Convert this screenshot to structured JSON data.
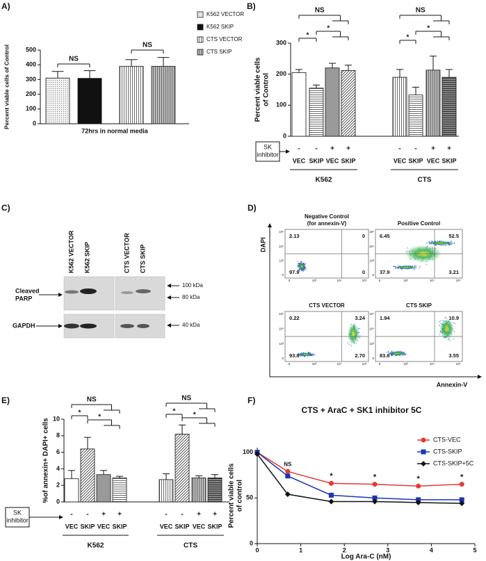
{
  "chart_data": [
    {
      "panel": "A)",
      "type": "bar",
      "categories": [
        "K562 VECTOR",
        "K562 SKIP",
        "CTS VECTOR",
        "CTS SKIP"
      ],
      "values": [
        310,
        308,
        390,
        390
      ],
      "errors": [
        45,
        52,
        45,
        60
      ],
      "patterns": [
        "dots",
        "solid",
        "vstripes",
        "grayv"
      ],
      "ylabel": "Percent viable cells of Control",
      "xlabel": "72hrs in normal media",
      "ylim": [
        0,
        500
      ],
      "yticks": [
        0,
        100,
        200,
        300,
        400,
        500
      ],
      "annotations": [
        "NS",
        "NS"
      ]
    },
    {
      "panel": "B)",
      "type": "bar",
      "categories": [
        "VEC",
        "SKIP",
        "VEC",
        "SKIP",
        "VEC",
        "SKIP",
        "VEC",
        "SKIP"
      ],
      "inhibitor": [
        "-",
        "-",
        "+",
        "+",
        "-",
        "-",
        "+",
        "+"
      ],
      "inhibitor_label": [
        "SK",
        "inhibitor"
      ],
      "groups": [
        "K562",
        "CTS"
      ],
      "values": [
        205,
        155,
        220,
        212,
        190,
        133,
        213,
        190
      ],
      "errors": [
        10,
        10,
        15,
        17,
        25,
        25,
        45,
        25
      ],
      "patterns": [
        "white",
        "hstripes",
        "gray",
        "diag",
        "vstripes",
        "hstripes",
        "grayv",
        "darkh"
      ],
      "ylabel": [
        "Percent viable cells",
        "of Control"
      ],
      "ylim": [
        0,
        300
      ],
      "yticks": [
        0,
        100,
        200,
        300
      ],
      "annotations": [
        "*",
        "*",
        "NS",
        "*",
        "*",
        "NS"
      ]
    },
    {
      "panel": "E)",
      "type": "bar",
      "categories": [
        "VEC",
        "SKIP",
        "VEC",
        "SKIP",
        "VEC",
        "SKIP",
        "VEC",
        "SKIP"
      ],
      "inhibitor": [
        "-",
        "-",
        "+",
        "+",
        "-",
        "-",
        "+",
        "+"
      ],
      "inhibitor_label": [
        "SK",
        "inhibitor"
      ],
      "groups": [
        "K562",
        "CTS"
      ],
      "values": [
        2.8,
        6.4,
        3.3,
        2.9,
        2.7,
        8.2,
        2.9,
        2.9
      ],
      "errors": [
        1.0,
        1.4,
        0.5,
        0.2,
        0.7,
        1.1,
        0.25,
        0.4
      ],
      "patterns": [
        "white",
        "diag",
        "gray",
        "hstripes",
        "vstripes",
        "diag",
        "grayv",
        "darkh"
      ],
      "ylabel": [
        "%of annexin+ DAPI+ cells"
      ],
      "ylim": [
        0,
        10
      ],
      "yticks": [
        0,
        2,
        4,
        6,
        8,
        10
      ],
      "annotations": [
        "*",
        "*",
        "NS",
        "*",
        "*",
        "NS"
      ]
    },
    {
      "panel": "F)",
      "type": "line",
      "title": "CTS + AraC + SK1 inhibitor 5C",
      "x": [
        0,
        0.7,
        1.7,
        2.7,
        3.7,
        4.7
      ],
      "series": [
        {
          "name": "CTS-VEC",
          "color": "#e53935",
          "marker": "circle",
          "values": [
            100,
            79,
            66,
            65,
            63,
            65
          ]
        },
        {
          "name": "CTS-SKIP",
          "color": "#1a35b5",
          "marker": "square",
          "values": [
            100,
            74,
            53,
            50,
            48,
            48
          ]
        },
        {
          "name": "CTS-SKIP+5C",
          "color": "#111111",
          "marker": "diamond",
          "values": [
            98,
            54,
            46,
            46,
            45,
            44
          ]
        }
      ],
      "xlim": [
        0,
        5
      ],
      "xticks": [
        0,
        1,
        2,
        3,
        4,
        5
      ],
      "ylim": [
        0,
        105
      ],
      "yticks": [
        0,
        50,
        100
      ],
      "xlabel": "Log Ara-C (nM)",
      "ylabel": [
        "Percent viable cells",
        "of control"
      ],
      "annotations": [
        "NS",
        "*",
        "*",
        "*",
        "*"
      ]
    }
  ],
  "western_blot": {
    "panel": "C)",
    "lanes": [
      "K562  VECTOR",
      "K562 SKIP",
      "CTS VECTOR",
      "CTS SKIP"
    ],
    "rows": [
      [
        "Cleaved",
        "PARP"
      ],
      [
        "GAPDH"
      ]
    ],
    "markers": [
      "100 kDa",
      "80 kDa",
      "40 kDa"
    ]
  },
  "flow_cytometry": {
    "panel": "D)",
    "ylabel": "DAPI",
    "xlabel": "Annexin-V",
    "axis_ticks": [
      "0",
      "10³",
      "10⁴",
      "10⁵"
    ],
    "plots": [
      {
        "title": [
          "Negative Control",
          "(for annexin-V)"
        ],
        "values": [
          2.13,
          0,
          97.9,
          0
        ]
      },
      {
        "title": [
          "Positive Control"
        ],
        "values": [
          6.45,
          52.5,
          37.9,
          3.21
        ]
      },
      {
        "title": [
          "CTS VECTOR"
        ],
        "values": [
          0.22,
          3.24,
          93.8,
          2.7
        ],
        "value_labels": [
          "0.22",
          "3.24",
          "93.8",
          "2.70"
        ]
      },
      {
        "title": [
          "CTS SKIP"
        ],
        "values": [
          1.94,
          10.9,
          83.6,
          3.55
        ]
      }
    ]
  }
}
